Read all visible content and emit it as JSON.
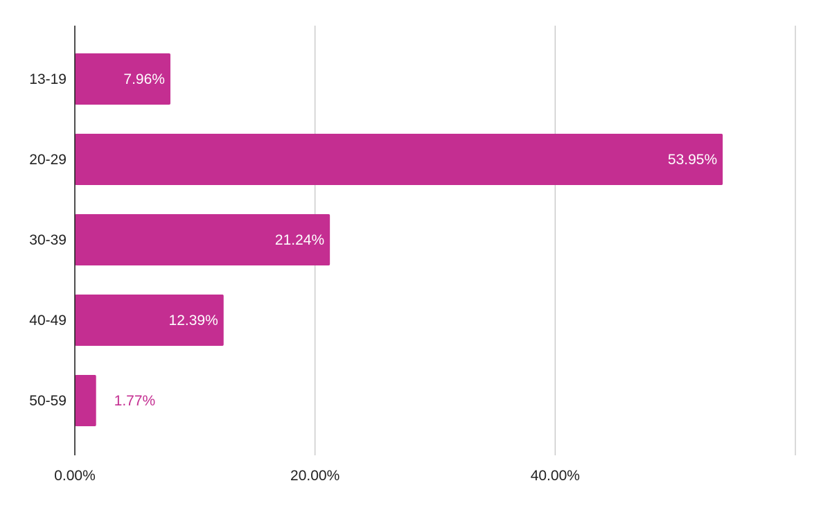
{
  "chart_data": {
    "type": "bar",
    "orientation": "horizontal",
    "title": "",
    "xlabel": "",
    "ylabel": "",
    "categories": [
      "13-19",
      "20-29",
      "30-39",
      "40-49",
      "50-59"
    ],
    "values": [
      7.96,
      53.95,
      21.24,
      12.39,
      1.77
    ],
    "value_labels": [
      "7.96%",
      "53.95%",
      "21.24%",
      "12.39%",
      "1.77%"
    ],
    "x_ticks": [
      0,
      20,
      40,
      60
    ],
    "x_tick_labels": [
      "0.00%",
      "20.00%",
      "40.00%",
      ""
    ],
    "xlim": [
      0,
      60
    ],
    "grid": true,
    "legend": "none",
    "bar_color": "#c42e91"
  }
}
